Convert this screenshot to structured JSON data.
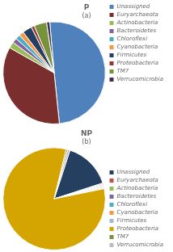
{
  "chart_data": [
    {
      "type": "pie",
      "title": "P",
      "subtitle": "(a)",
      "categories": [
        "Unassigned",
        "Euryarchaeota",
        "Actinobacteria",
        "Bacteroidetes",
        "Chloroflexi",
        "Cyanobacteria",
        "Firmicutes",
        "Proteobacteria",
        "TM7",
        "Verrucomicrobia"
      ],
      "values": [
        50,
        35,
        2.0,
        1.5,
        1.5,
        1.5,
        3.0,
        1.0,
        4.0,
        1.0
      ],
      "colors": [
        "#4f81bd",
        "#7b2e2e",
        "#9bbb59",
        "#8064a2",
        "#4bacc6",
        "#f79646",
        "#243f60",
        "#943634",
        "#76923c",
        "#403152"
      ],
      "legend": "upper right"
    },
    {
      "type": "pie",
      "title": "NP",
      "subtitle": "(b)",
      "categories": [
        "Unassigned",
        "Euryarchaeota",
        "Actinobacteria",
        "Bacteroidetes",
        "Chloroflexi",
        "Cyanobacteria",
        "Firmicutes",
        "Proteobacteria",
        "TM7",
        "Verrucomicrobia"
      ],
      "values": [
        15,
        0.3,
        0.3,
        0.3,
        0.3,
        0.3,
        0.3,
        82,
        0.5,
        0.7
      ],
      "colors": [
        "#243f60",
        "#c0504d",
        "#9bbb59",
        "#8064a2",
        "#4bacc6",
        "#f79646",
        "#a6b9d4",
        "#d4a400",
        "#76923c",
        "#c0b8c8"
      ],
      "legend": "lower right"
    }
  ]
}
